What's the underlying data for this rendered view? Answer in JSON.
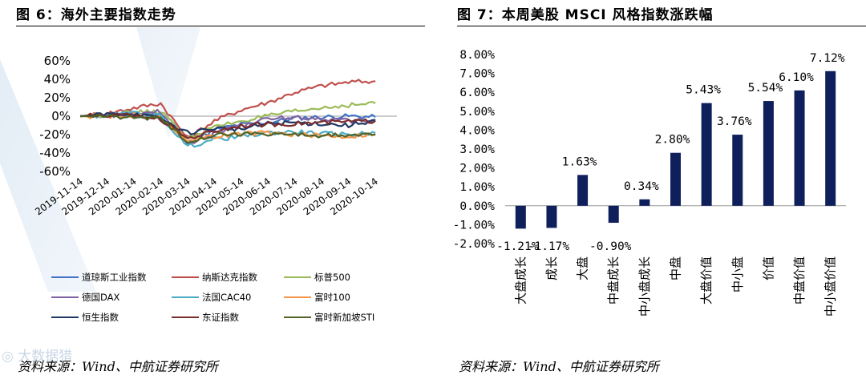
{
  "watermark": "◎ 大数据猎",
  "left": {
    "title": "图 6：海外主要指数走势",
    "source": "资料来源：Wind、中航证券研究所",
    "chart_data": {
      "type": "line",
      "yticks": [
        "60%",
        "40%",
        "20%",
        "0%",
        "-20%",
        "-40%",
        "-60%"
      ],
      "ylim": [
        -60,
        60
      ],
      "xticks": [
        "2019-11-14",
        "2019-12-14",
        "2020-01-14",
        "2020-02-14",
        "2020-03-14",
        "2020-04-14",
        "2020-05-14",
        "2020-06-14",
        "2020-07-14",
        "2020-08-14",
        "2020-09-14",
        "2020-10-14"
      ],
      "series": [
        {
          "name": "道琼斯工业指数",
          "color": "#4472c4",
          "values": [
            0,
            1,
            3,
            2,
            -30,
            -15,
            -9,
            -7,
            -2,
            -1,
            0,
            -1
          ]
        },
        {
          "name": "纳斯达克指数",
          "color": "#c0504d",
          "values": [
            0,
            3,
            9,
            14,
            -24,
            -5,
            7,
            15,
            26,
            33,
            37,
            38
          ]
        },
        {
          "name": "标普500",
          "color": "#9bbb59",
          "values": [
            0,
            2,
            4,
            5,
            -24,
            -12,
            -5,
            0,
            5,
            9,
            12,
            14
          ]
        },
        {
          "name": "德国DAX",
          "color": "#8064a2",
          "values": [
            0,
            1,
            2,
            5,
            -30,
            -18,
            -10,
            -3,
            -1,
            -3,
            -5,
            -5
          ]
        },
        {
          "name": "法国CAC40",
          "color": "#4bacc6",
          "values": [
            0,
            1,
            3,
            0,
            -33,
            -25,
            -22,
            -18,
            -17,
            -19,
            -20,
            -18
          ]
        },
        {
          "name": "富时100",
          "color": "#f79646",
          "values": [
            0,
            0,
            1,
            -2,
            -26,
            -22,
            -19,
            -18,
            -20,
            -21,
            -22,
            -19
          ]
        },
        {
          "name": "恒生指数",
          "color": "#1f3864",
          "values": [
            0,
            2,
            3,
            -3,
            -18,
            -13,
            -14,
            -8,
            -7,
            -8,
            -10,
            -4
          ]
        },
        {
          "name": "东证指数",
          "color": "#7b2c2c",
          "values": [
            0,
            1,
            1,
            -3,
            -24,
            -16,
            -10,
            -9,
            -8,
            -7,
            -6,
            -5
          ]
        },
        {
          "name": "富时新加坡STI",
          "color": "#4f6228",
          "values": [
            0,
            0,
            -1,
            -3,
            -27,
            -20,
            -19,
            -19,
            -20,
            -21,
            -21,
            -20
          ]
        }
      ]
    }
  },
  "right": {
    "title": "图 7：本周美股 MSCI 风格指数涨跌幅",
    "source": "资料来源：Wind、中航证券研究所",
    "chart_data": {
      "type": "bar",
      "color": "#0e1f5c",
      "yticks": [
        "8.00%",
        "7.00%",
        "6.00%",
        "5.00%",
        "4.00%",
        "3.00%",
        "2.00%",
        "1.00%",
        "0.00%",
        "-1.00%",
        "-2.00%"
      ],
      "ylim": [
        -2,
        8
      ],
      "categories": [
        "大盘成长",
        "成长",
        "大盘",
        "中盘成长",
        "中小盘成长",
        "中盘",
        "大盘价值",
        "中小盘",
        "价值",
        "中盘价值",
        "中小盘价值"
      ],
      "values": [
        -1.21,
        -1.17,
        1.63,
        -0.9,
        0.34,
        2.8,
        5.43,
        3.76,
        5.54,
        6.1,
        7.12
      ],
      "labels": [
        "-1.21%",
        "-1.17%",
        "1.63%",
        "-0.90%",
        "0.34%",
        "2.80%",
        "5.43%",
        "3.76%",
        "5.54%",
        "6.10%",
        "7.12%"
      ]
    }
  }
}
